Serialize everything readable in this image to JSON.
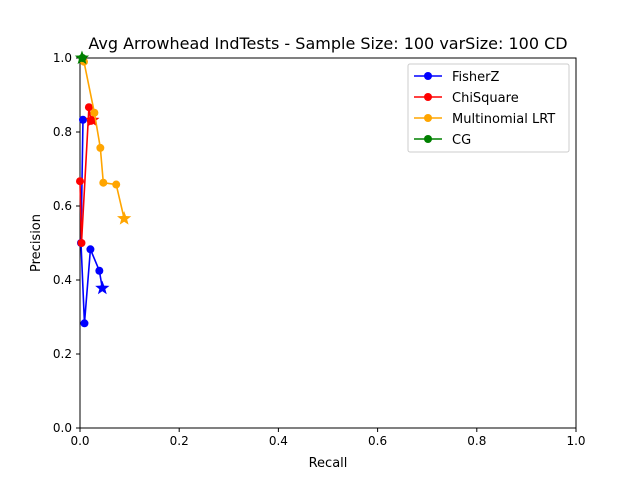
{
  "chart_data": {
    "type": "line",
    "title": "Avg Arrowhead IndTests - Sample Size: 100 varSize: 100 CD",
    "xlabel": "Recall",
    "ylabel": "Precision",
    "xlim": [
      0,
      1
    ],
    "ylim": [
      0,
      1
    ],
    "xticks": [
      "0.0",
      "0.2",
      "0.4",
      "0.6",
      "0.8",
      "1.0"
    ],
    "yticks": [
      "0.0",
      "0.2",
      "0.4",
      "0.6",
      "0.8",
      "1.0"
    ],
    "grid": false,
    "legend_position": "top-right",
    "series": [
      {
        "name": "FisherZ",
        "color": "#0000ff",
        "points": [
          [
            0.006,
            0.833
          ],
          [
            0.002,
            0.5
          ],
          [
            0.009,
            0.283
          ],
          [
            0.021,
            0.483
          ],
          [
            0.039,
            0.425
          ]
        ],
        "star": [
          0.045,
          0.378
        ]
      },
      {
        "name": "ChiSquare",
        "color": "#ff0000",
        "points": [
          [
            0.0,
            0.667
          ],
          [
            0.003,
            0.5
          ],
          [
            0.018,
            0.867
          ],
          [
            0.022,
            0.83
          ]
        ],
        "star": [
          0.025,
          0.832
        ]
      },
      {
        "name": "Multinomial LRT",
        "color": "#ffa500",
        "points": [
          [
            0.008,
            0.99
          ],
          [
            0.029,
            0.852
          ],
          [
            0.041,
            0.757
          ],
          [
            0.047,
            0.663
          ],
          [
            0.073,
            0.658
          ]
        ],
        "star": [
          0.089,
          0.566
        ]
      },
      {
        "name": "CG",
        "color": "#008000",
        "points": [
          [
            0.005,
            1.0
          ]
        ],
        "star": [
          0.004,
          1.0
        ]
      }
    ]
  }
}
